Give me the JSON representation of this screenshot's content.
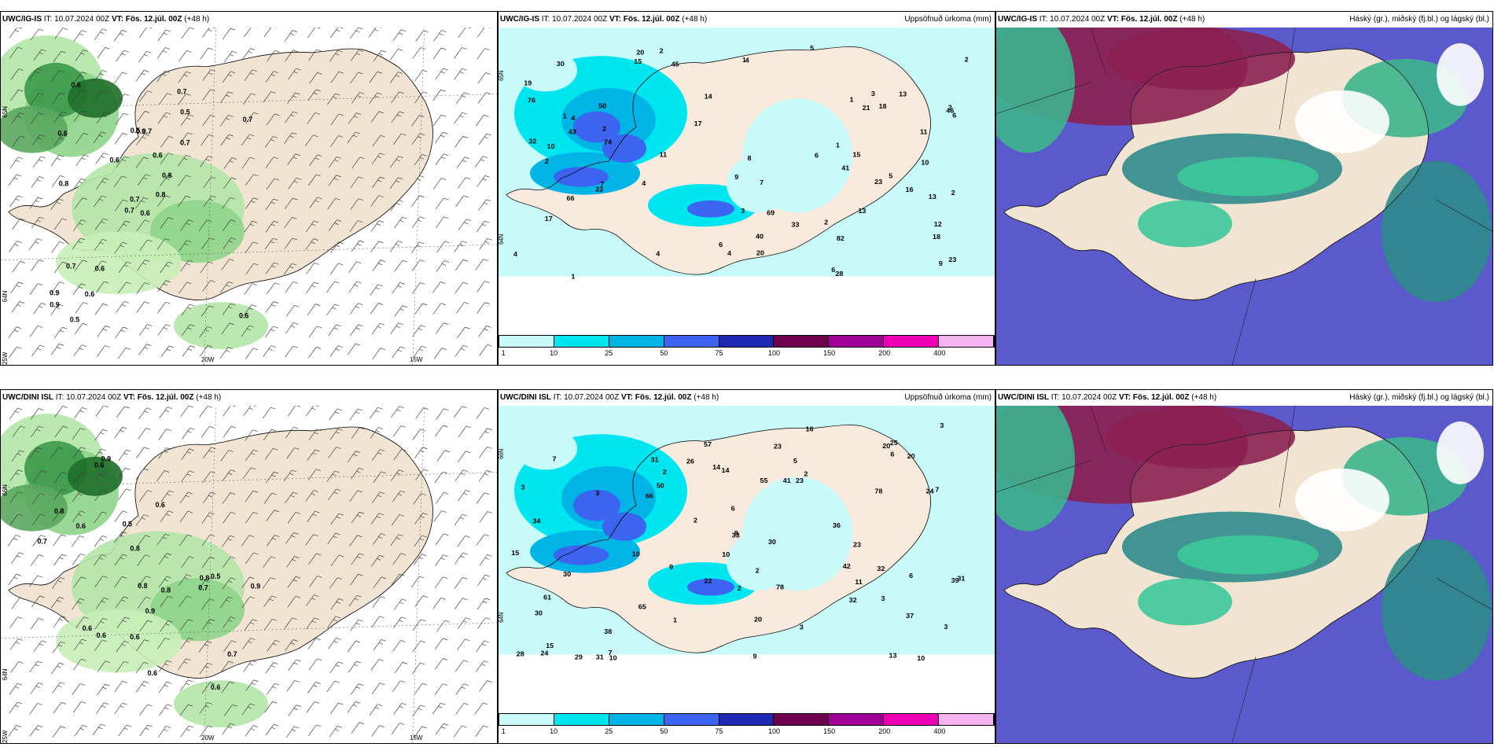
{
  "panels": [
    {
      "model": "UWC/IG-IS",
      "it_label": "IT:",
      "it_value": "10.07.2024 00Z",
      "vt_label": "VT:",
      "vt_value": "Fös. 12.júl. 00Z",
      "lead": "(+48 h)",
      "right_title": "",
      "type": "wind",
      "lat_labels": [
        "65N",
        "64N",
        "25W"
      ],
      "lon_labels": [
        "20W",
        "15W"
      ],
      "values": [
        "0.6",
        "0.6",
        "0.7",
        "0.9",
        "0.8",
        "0.6",
        "0.7",
        "0.7",
        "0.5",
        "0.8",
        "0.6",
        "0.6",
        "0.8",
        "0.7",
        "0.7",
        "0.7",
        "0.5",
        "0.5",
        "0.6",
        "0.7",
        "0.6",
        "0.9",
        "0.6",
        "0.9"
      ]
    },
    {
      "model": "UWC/IG-IS",
      "it_label": "IT:",
      "it_value": "10.07.2024 00Z",
      "vt_label": "VT:",
      "vt_value": "Fös. 12.júl. 00Z",
      "lead": "(+48 h)",
      "right_title": "Uppsöfnuð úrkoma (mm)",
      "type": "precip",
      "lat_labels": [
        "65N",
        "64N"
      ],
      "lon_labels": [],
      "values": [
        "12",
        "16",
        "13",
        "11",
        "14",
        "6",
        "6",
        "7",
        "7",
        "4",
        "4",
        "1",
        "15",
        "28",
        "40",
        "43",
        "66",
        "45",
        "9",
        "10",
        "9",
        "8",
        "13",
        "4",
        "2",
        "2",
        "2",
        "4",
        "69",
        "22",
        "74",
        "76",
        "46",
        "50",
        "41",
        "82",
        "33",
        "23",
        "23",
        "18",
        "17",
        "20",
        "30",
        "17",
        "15",
        "5",
        "20",
        "11",
        "2",
        "19",
        "32",
        "18",
        "2",
        "1",
        "3",
        "1",
        "21",
        "13",
        "10",
        "6",
        "6",
        "3",
        "4",
        "4",
        "5",
        "1",
        "1",
        "2",
        "3"
      ]
    },
    {
      "model": "UWC/IG-IS",
      "it_label": "IT:",
      "it_value": "10.07.2024 00Z",
      "vt_label": "VT:",
      "vt_value": "Fös. 12.júl. 00Z",
      "lead": "(+48 h)",
      "right_title": "Háský (gr.), miðský (fj.bl.) og lágský (bl.)",
      "type": "cloud"
    },
    {
      "model": "UWC/DINI ISL",
      "it_label": "IT:",
      "it_value": "10.07.2024 00Z",
      "vt_label": "VT:",
      "vt_value": "Fös. 12.júl. 00Z",
      "lead": "(+48 h)",
      "right_title": "",
      "type": "wind",
      "lat_labels": [
        "66N",
        "64N",
        "25W"
      ],
      "lon_labels": [
        "20W",
        "15W"
      ],
      "values": [
        "0.6",
        "0.8",
        "0.8",
        "0.6",
        "0.6",
        "0.6",
        "0.7",
        "0.8",
        "0.7",
        "0.7",
        "0.9",
        "0.8",
        "0.6",
        "0.5",
        "0.9",
        "0.6",
        "0.5",
        "0.8",
        "0.6",
        "0.6",
        "0.9"
      ]
    },
    {
      "model": "UWC/DINI ISL",
      "it_label": "IT:",
      "it_value": "10.07.2024 00Z",
      "vt_label": "VT:",
      "vt_value": "Fös. 12.júl. 00Z",
      "lead": "(+48 h)",
      "right_title": "Uppsöfnuð úrkoma (mm)",
      "type": "precip",
      "lat_labels": [
        "66N",
        "64N"
      ],
      "lon_labels": [],
      "values": [
        "6",
        "10",
        "11",
        "9",
        "23",
        "10",
        "9",
        "8",
        "13",
        "10",
        "14",
        "3",
        "5",
        "3",
        "37",
        "32",
        "50",
        "38",
        "39",
        "24",
        "20",
        "23",
        "34",
        "31",
        "30",
        "24",
        "2",
        "78",
        "66",
        "78",
        "55",
        "61",
        "57",
        "65",
        "42",
        "36",
        "30",
        "41",
        "31",
        "26",
        "28",
        "23",
        "22",
        "31",
        "25",
        "30",
        "20",
        "15",
        "29",
        "20",
        "16",
        "33",
        "32",
        "6",
        "7",
        "3",
        "7",
        "3",
        "2",
        "3",
        "14",
        "10",
        "6",
        "7",
        "15",
        "3",
        "2",
        "2",
        "2",
        "1"
      ]
    },
    {
      "model": "UWC/DINI ISL",
      "it_label": "IT:",
      "it_value": "10.07.2024 00Z",
      "vt_label": "VT:",
      "vt_value": "Fös. 12.júl. 00Z",
      "lead": "(+48 h)",
      "right_title": "Háský (gr.), miðský (fj.bl.) og lágský (bl.)",
      "type": "cloud"
    }
  ],
  "legend": {
    "labels": [
      "1",
      "10",
      "25",
      "50",
      "75",
      "100",
      "150",
      "200",
      "400"
    ],
    "colors": [
      "#c8fafa",
      "#00e6f0",
      "#00b4e6",
      "#3c64f0",
      "#1e28b4",
      "#6e0050",
      "#a00096",
      "#f000b4",
      "#f5b4f0"
    ]
  }
}
